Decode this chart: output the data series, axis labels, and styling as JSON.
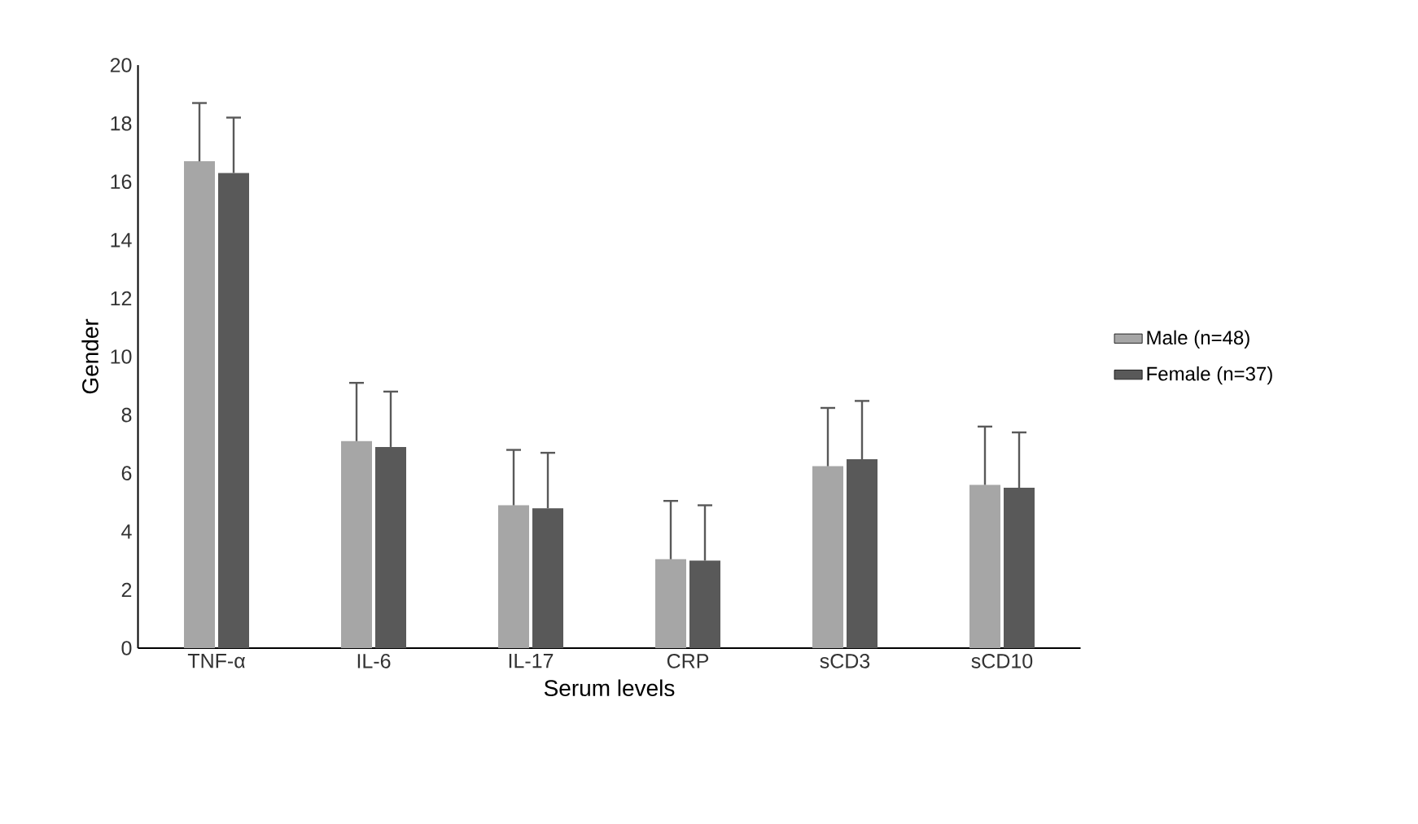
{
  "chart_data": {
    "type": "bar",
    "xlabel": "Serum levels",
    "ylabel": "Gender",
    "categories": [
      "TNF-α",
      "IL-6",
      "IL-17",
      "CRP",
      "sCD3",
      "sCD10"
    ],
    "series": [
      {
        "name": "Male (n=48)",
        "color": "#a6a6a6",
        "values": [
          16.7,
          7.1,
          4.9,
          3.05,
          6.24,
          5.6
        ],
        "errors": [
          [
            16.7,
            18.7
          ],
          [
            7.1,
            9.1
          ],
          [
            4.9,
            6.8
          ],
          [
            3.05,
            5.05
          ],
          [
            6.24,
            8.24
          ],
          [
            5.6,
            7.6
          ]
        ]
      },
      {
        "name": "Female (n=37)",
        "color": "#595959",
        "values": [
          16.3,
          6.9,
          4.8,
          3.0,
          6.48,
          5.5
        ],
        "errors": [
          [
            16.3,
            18.2
          ],
          [
            6.9,
            8.8
          ],
          [
            4.8,
            6.7
          ],
          [
            3.0,
            4.9
          ],
          [
            6.48,
            8.48
          ],
          [
            5.5,
            7.4
          ]
        ]
      }
    ],
    "ylim": [
      0,
      20
    ],
    "yticks": [
      0,
      2,
      4,
      6,
      8,
      10,
      12,
      14,
      16,
      18,
      20
    ],
    "grid": false,
    "legend": "right"
  }
}
